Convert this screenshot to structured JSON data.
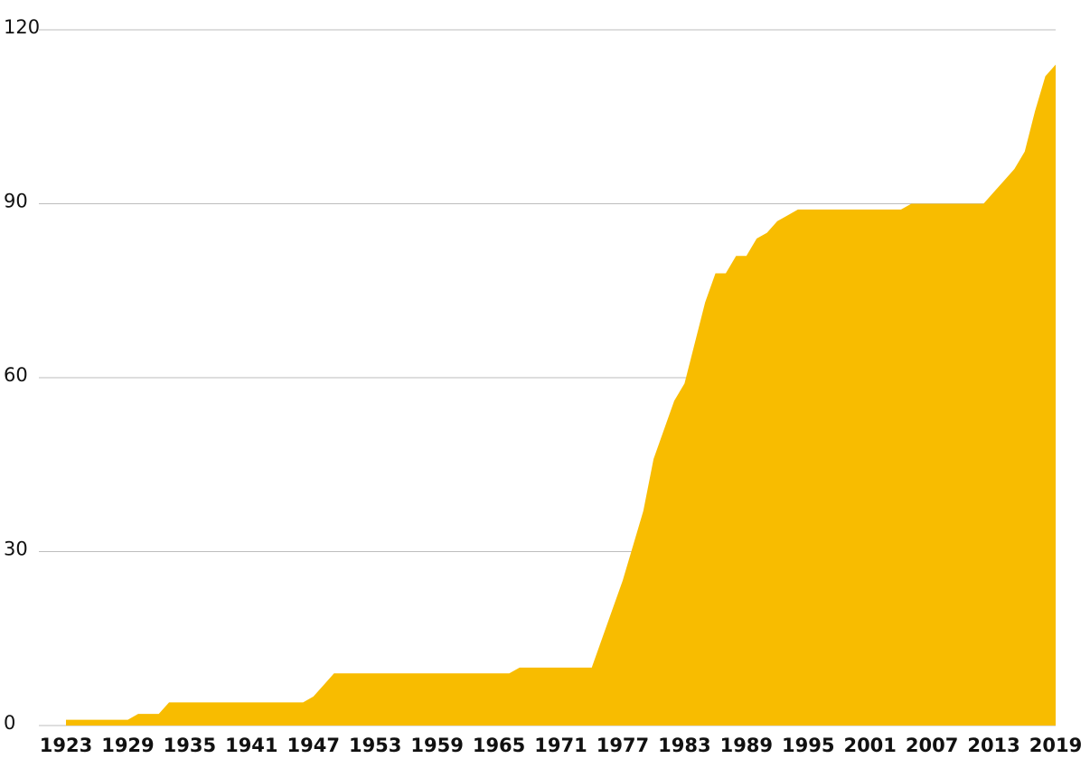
{
  "chart_data": {
    "type": "area",
    "x": [
      1923,
      1924,
      1925,
      1926,
      1927,
      1928,
      1929,
      1930,
      1931,
      1932,
      1933,
      1934,
      1935,
      1936,
      1937,
      1938,
      1939,
      1940,
      1941,
      1942,
      1943,
      1944,
      1945,
      1946,
      1947,
      1948,
      1949,
      1950,
      1951,
      1952,
      1953,
      1954,
      1955,
      1956,
      1957,
      1958,
      1959,
      1960,
      1961,
      1962,
      1963,
      1964,
      1965,
      1966,
      1967,
      1968,
      1969,
      1970,
      1971,
      1972,
      1973,
      1974,
      1975,
      1976,
      1977,
      1978,
      1979,
      1980,
      1981,
      1982,
      1983,
      1984,
      1985,
      1986,
      1987,
      1988,
      1989,
      1990,
      1991,
      1992,
      1993,
      1994,
      1995,
      1996,
      1997,
      1998,
      1999,
      2000,
      2001,
      2002,
      2003,
      2004,
      2005,
      2006,
      2007,
      2008,
      2009,
      2010,
      2011,
      2012,
      2013,
      2014,
      2015,
      2016,
      2017,
      2018,
      2019
    ],
    "values": [
      1,
      1,
      1,
      1,
      1,
      1,
      1,
      2,
      2,
      2,
      4,
      4,
      4,
      4,
      4,
      4,
      4,
      4,
      4,
      4,
      4,
      4,
      4,
      4,
      5,
      7,
      9,
      9,
      9,
      9,
      9,
      9,
      9,
      9,
      9,
      9,
      9,
      9,
      9,
      9,
      9,
      9,
      9,
      9,
      10,
      10,
      10,
      10,
      10,
      10,
      10,
      10,
      15,
      20,
      25,
      31,
      37,
      46,
      51,
      56,
      59,
      66,
      73,
      78,
      78,
      81,
      81,
      84,
      85,
      87,
      88,
      89,
      89,
      89,
      89,
      89,
      89,
      89,
      89,
      89,
      89,
      89,
      90,
      90,
      90,
      90,
      90,
      90,
      90,
      90,
      92,
      94,
      96,
      99,
      106,
      112,
      114
    ],
    "color": "#f8bc00",
    "xlim": [
      1923,
      2019
    ],
    "xticks": [
      1923,
      1929,
      1935,
      1941,
      1947,
      1953,
      1959,
      1965,
      1971,
      1977,
      1983,
      1989,
      1995,
      2001,
      2007,
      2013,
      2019
    ],
    "ylim": [
      0,
      120
    ],
    "yticks": [
      0,
      30,
      60,
      90,
      120
    ],
    "grid": true
  }
}
